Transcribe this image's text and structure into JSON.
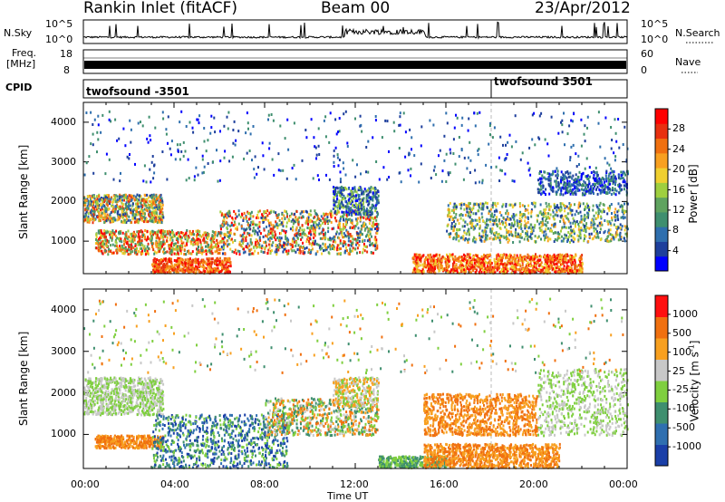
{
  "header": {
    "radar": "Rankin Inlet (fitACF)",
    "beam": "Beam 00",
    "date": "23/Apr/2012"
  },
  "strip": {
    "nsky_label": "N.Sky",
    "nsky_ticks": [
      "10^5",
      "10^0"
    ],
    "nsearch_label": "N.Search",
    "freq_label_1": "Freq.",
    "freq_label_2": "[MHz]",
    "freq_ticks": [
      "18",
      "8"
    ],
    "nave_label": "Nave",
    "nave_ticks": [
      "60",
      "0"
    ],
    "cpid_label": "CPID",
    "cpid_entries": [
      {
        "name": "twofsound -3501",
        "start_hour": 0
      },
      {
        "name": "twofsound 3501",
        "start_hour": 18.0
      }
    ]
  },
  "chart_data": [
    {
      "type": "heatmap",
      "title": "",
      "xlabel": "Time UT",
      "ylabel": "Slant Range [km]",
      "x_ticks": [
        "00:00",
        "04:00",
        "08:00",
        "12:00",
        "16:00",
        "20:00",
        "00:00"
      ],
      "xlim_hours": [
        0,
        24
      ],
      "y_ticks": [
        1000,
        2000,
        3000,
        4000
      ],
      "ylim": [
        180,
        4500
      ],
      "colorbar": {
        "label": "Power [dB]",
        "ticks": [
          "4",
          "8",
          "12",
          "16",
          "20",
          "24",
          "28"
        ],
        "colors": [
          "#0000ff",
          "#1e3f9c",
          "#2f6fae",
          "#3f8f6f",
          "#5fa35f",
          "#9fcf3f",
          "#f0d030",
          "#f8a020",
          "#f07010",
          "#e83010",
          "#ff0000"
        ]
      }
    },
    {
      "type": "heatmap",
      "title": "",
      "xlabel": "Time UT",
      "ylabel": "Slant Range [km]",
      "x_ticks": [
        "00:00",
        "04:00",
        "08:00",
        "12:00",
        "16:00",
        "20:00",
        "00:00"
      ],
      "xlim_hours": [
        0,
        24
      ],
      "y_ticks": [
        1000,
        2000,
        3000,
        4000
      ],
      "ylim": [
        180,
        4500
      ],
      "colorbar": {
        "label": "Velocity [m s^-1]",
        "ticks": [
          "1000",
          "500",
          "100",
          "25",
          "-25",
          "-100",
          "-500",
          "-1000"
        ],
        "colors": [
          "#1a3fa8",
          "#2f6fb0",
          "#3f8f6f",
          "#7fcf3f",
          "#c8c8c8",
          "#f8a020",
          "#f07010",
          "#ff1010"
        ]
      }
    }
  ]
}
